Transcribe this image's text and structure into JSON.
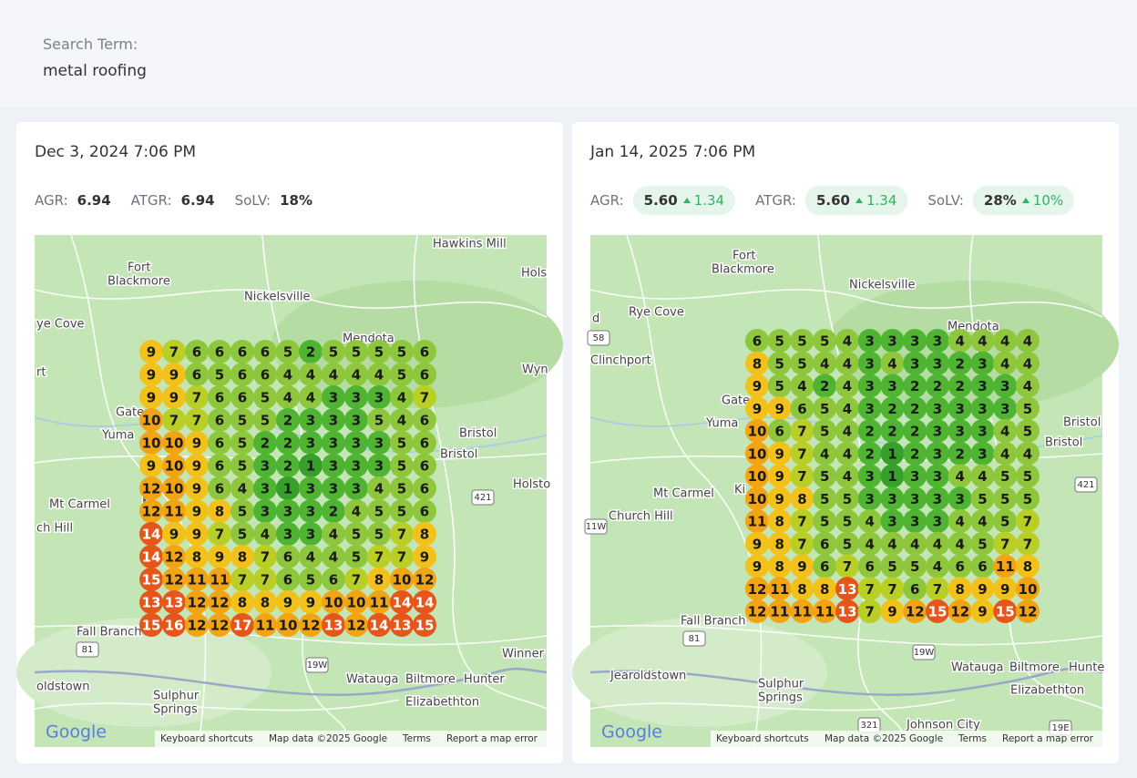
{
  "header": {
    "label": "Search Term:",
    "term": "metal roofing"
  },
  "panels": [
    {
      "date": "Dec 3, 2024 7:06 PM",
      "metrics": [
        {
          "label": "AGR:",
          "value": "6.94"
        },
        {
          "label": "ATGR:",
          "value": "6.94"
        },
        {
          "label": "SoLV:",
          "value": "18%"
        }
      ],
      "grid": [
        [
          9,
          7,
          6,
          6,
          6,
          6,
          5,
          2,
          5,
          5,
          5,
          5,
          6
        ],
        [
          9,
          9,
          6,
          5,
          6,
          6,
          4,
          4,
          4,
          4,
          4,
          5,
          6
        ],
        [
          9,
          9,
          7,
          6,
          6,
          5,
          4,
          4,
          3,
          3,
          3,
          4,
          7
        ],
        [
          10,
          7,
          7,
          6,
          5,
          5,
          2,
          3,
          3,
          3,
          5,
          4,
          6
        ],
        [
          10,
          10,
          9,
          6,
          5,
          2,
          2,
          3,
          3,
          3,
          3,
          5,
          6
        ],
        [
          9,
          10,
          9,
          6,
          5,
          3,
          2,
          1,
          3,
          3,
          3,
          5,
          6
        ],
        [
          12,
          10,
          9,
          6,
          4,
          3,
          1,
          3,
          3,
          3,
          4,
          5,
          6
        ],
        [
          12,
          11,
          9,
          8,
          5,
          3,
          3,
          3,
          2,
          4,
          5,
          5,
          6
        ],
        [
          14,
          9,
          9,
          7,
          5,
          4,
          3,
          3,
          4,
          5,
          5,
          7,
          8
        ],
        [
          14,
          12,
          8,
          9,
          8,
          7,
          6,
          4,
          4,
          5,
          7,
          7,
          9
        ],
        [
          15,
          12,
          11,
          11,
          7,
          7,
          6,
          5,
          6,
          7,
          8,
          10,
          12
        ],
        [
          13,
          13,
          12,
          12,
          8,
          8,
          9,
          9,
          10,
          10,
          11,
          14,
          14
        ],
        [
          15,
          16,
          12,
          12,
          17,
          11,
          10,
          12,
          13,
          12,
          14,
          13,
          15
        ]
      ],
      "map_labels": [
        "Hawkins Mill",
        "Hols",
        "Fort",
        "Blackmore",
        "Nickelsville",
        "ye Cove",
        "Mendota",
        "rt",
        "Wyn",
        "Gate",
        "Yuma",
        "Bristol",
        "Bristol",
        "Holsto",
        "Mt Carmel",
        "Ki",
        "ch Hill",
        "Fall Branch",
        "Winner",
        "oldstown",
        "Watauga",
        "Biltmore",
        "Hunter",
        "Sulphur",
        "Springs",
        "Elizabethton"
      ],
      "shields": [
        "421",
        "81",
        "19W"
      ],
      "footer": {
        "logo": "Google",
        "links": [
          "Keyboard shortcuts",
          "Map data ©2025 Google",
          "Terms",
          "Report a map error"
        ]
      }
    },
    {
      "date": "Jan 14, 2025 7:06 PM",
      "metrics": [
        {
          "label": "AGR:",
          "value": "5.60",
          "change": "1.34"
        },
        {
          "label": "ATGR:",
          "value": "5.60",
          "change": "1.34"
        },
        {
          "label": "SoLV:",
          "value": "28%",
          "change": "10%"
        }
      ],
      "grid": [
        [
          6,
          5,
          5,
          5,
          4,
          3,
          3,
          3,
          3,
          4,
          4,
          4,
          4
        ],
        [
          8,
          5,
          5,
          4,
          4,
          3,
          4,
          3,
          3,
          2,
          3,
          4,
          4
        ],
        [
          9,
          5,
          4,
          2,
          4,
          3,
          3,
          2,
          2,
          2,
          3,
          3,
          4
        ],
        [
          9,
          9,
          6,
          5,
          4,
          3,
          2,
          2,
          3,
          3,
          3,
          3,
          5
        ],
        [
          10,
          6,
          7,
          5,
          4,
          2,
          2,
          2,
          3,
          3,
          3,
          4,
          5
        ],
        [
          10,
          9,
          7,
          4,
          4,
          2,
          1,
          2,
          3,
          2,
          3,
          4,
          4
        ],
        [
          10,
          9,
          7,
          5,
          4,
          3,
          1,
          3,
          3,
          4,
          4,
          5,
          5
        ],
        [
          10,
          9,
          8,
          5,
          5,
          3,
          3,
          3,
          3,
          3,
          5,
          5,
          5
        ],
        [
          11,
          8,
          7,
          5,
          5,
          4,
          3,
          3,
          3,
          4,
          4,
          5,
          7
        ],
        [
          9,
          8,
          7,
          6,
          5,
          4,
          4,
          4,
          4,
          4,
          5,
          7,
          7
        ],
        [
          9,
          8,
          9,
          6,
          7,
          6,
          5,
          5,
          4,
          6,
          6,
          11,
          8
        ],
        [
          12,
          11,
          8,
          8,
          13,
          7,
          7,
          6,
          7,
          8,
          9,
          9,
          10
        ],
        [
          12,
          11,
          11,
          11,
          13,
          7,
          9,
          12,
          15,
          12,
          9,
          15,
          12
        ]
      ],
      "map_labels": [
        "Fort",
        "Blackmore",
        "Nickelsville",
        "d",
        "Rye Cove",
        "Clinchport",
        "Mendota",
        "Gate",
        "Yuma",
        "Bristol",
        "Bristol",
        "Mt Carmel",
        "Ki",
        "Church Hill",
        "Fall Branch",
        "Watauga",
        "Biltmore",
        "Hunte",
        "Jearoldstown",
        "Sulphur",
        "Springs",
        "Elizabethton",
        "Johnson City"
      ],
      "shields": [
        "58",
        "421",
        "11W",
        "81",
        "19W",
        "321",
        "19E"
      ],
      "footer": {
        "logo": "Google",
        "links": [
          "Keyboard shortcuts",
          "Map data ©2025 Google",
          "Terms",
          "Report a map error"
        ]
      }
    }
  ]
}
